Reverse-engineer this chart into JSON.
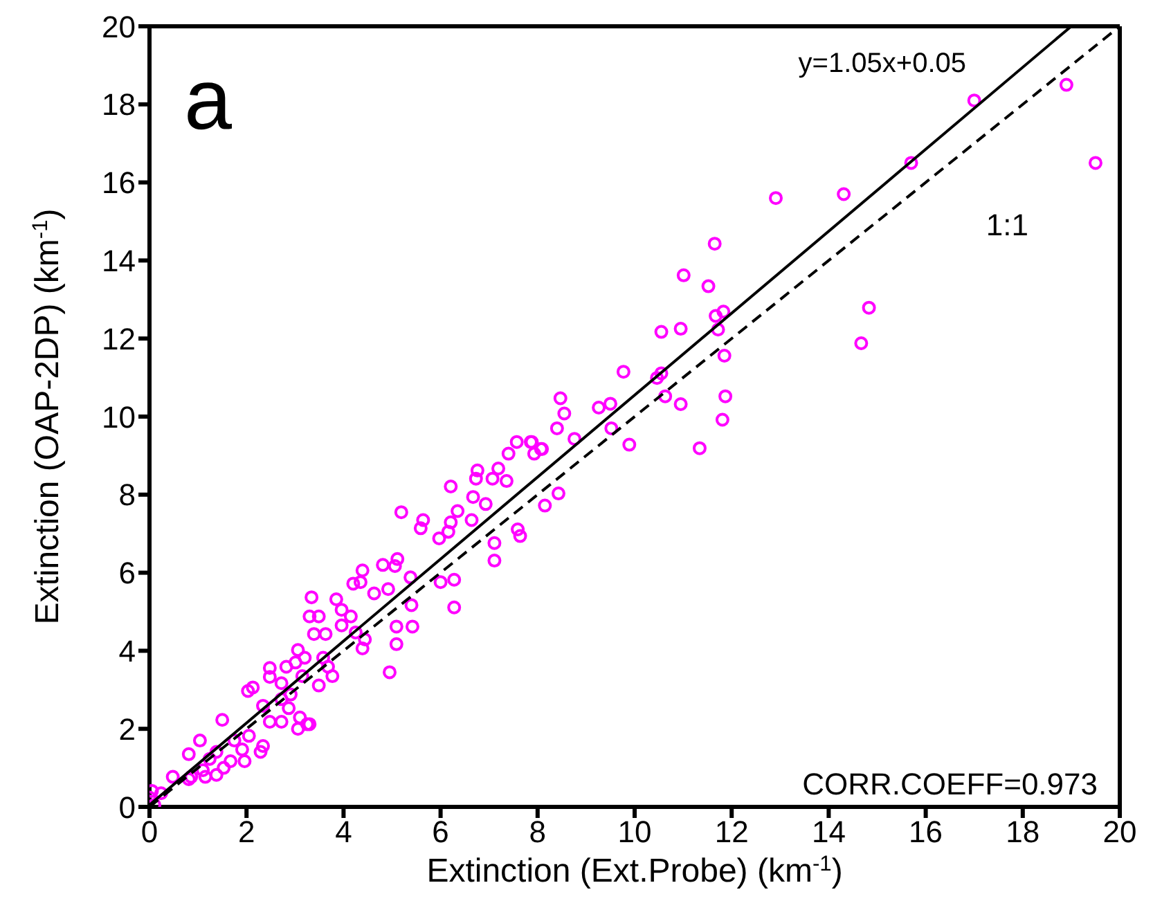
{
  "chart_data": {
    "type": "scatter",
    "xlabel": "Extinction (Ext.Probe) (km$^{-1}$)",
    "ylabel": "Extinction (OAP-2DP) (km$^{-1}$)",
    "xlim": [
      0,
      20
    ],
    "ylim": [
      0,
      20
    ],
    "xticks": [
      0,
      2,
      4,
      6,
      8,
      10,
      12,
      14,
      16,
      18,
      20
    ],
    "yticks": [
      0,
      2,
      4,
      6,
      8,
      10,
      12,
      14,
      16,
      18,
      20
    ],
    "legend": false,
    "annotations": [
      "a",
      "y=1.05x+0.05",
      "1:1",
      "CORR.COEFF=0.973"
    ],
    "series": [
      {
        "color": "#ff00ff",
        "marker": "circle",
        "x": [
          12.91,
          14.31,
          11.65,
          11.01,
          11.52,
          14.83,
          14.67,
          10.55,
          10.95,
          11.67,
          11.83,
          11.72,
          11.85,
          9.77,
          10.46,
          10.55,
          10.63,
          10.95,
          11.87,
          11.81,
          11.34,
          8.47,
          8.55,
          9.26,
          9.5,
          8.4,
          9.52,
          8.76,
          9.89,
          7.88,
          8.07,
          8.43,
          17.0,
          15.7,
          18.9,
          19.5,
          7.57,
          7.86,
          8.09,
          7.4,
          7.93,
          6.76,
          7.19,
          6.73,
          7.07,
          7.36,
          6.21,
          6.67,
          6.93,
          8.15,
          5.19,
          6.35,
          5.64,
          5.59,
          6.64,
          6.21,
          5.97,
          6.16,
          7.59,
          7.64,
          7.11,
          7.11,
          5.11,
          5.06,
          4.81,
          5.38,
          4.39,
          4.35,
          4.2,
          6.0,
          6.28,
          6.28,
          4.63,
          4.92,
          5.4,
          5.09,
          5.42,
          5.09,
          3.85,
          3.34,
          3.3,
          3.49,
          3.96,
          4.15,
          3.39,
          3.63,
          3.96,
          4.25,
          4.44,
          4.39,
          3.06,
          3.2,
          3.58,
          3.68,
          3.77,
          3.49,
          4.95,
          3.01,
          2.82,
          2.72,
          2.91,
          3.15,
          2.48,
          2.48,
          2.13,
          2.03,
          2.34,
          2.72,
          2.87,
          3.1,
          3.25,
          3.06,
          3.3,
          2.48,
          2.72,
          2.05,
          2.34,
          2.29,
          1.5,
          1.75,
          1.91,
          1.96,
          1.04,
          1.38,
          1.24,
          1.67,
          1.53,
          0.81,
          0.86,
          1.1,
          1.38,
          0.81,
          1.15,
          0.48,
          0.05,
          0.24,
          0.0,
          0.1
        ],
        "values": [
          15.6,
          15.7,
          14.43,
          13.62,
          13.34,
          12.79,
          11.88,
          12.17,
          12.25,
          12.58,
          12.69,
          12.23,
          11.56,
          11.15,
          10.99,
          11.11,
          10.52,
          10.32,
          10.52,
          9.92,
          9.19,
          10.47,
          10.08,
          10.23,
          10.33,
          9.7,
          9.7,
          9.43,
          9.28,
          9.35,
          9.17,
          8.03,
          18.1,
          16.5,
          18.5,
          16.5,
          9.35,
          9.35,
          9.17,
          9.05,
          9.05,
          8.62,
          8.67,
          8.41,
          8.41,
          8.35,
          8.21,
          7.94,
          7.76,
          7.72,
          7.55,
          7.58,
          7.35,
          7.14,
          7.35,
          7.29,
          6.88,
          7.05,
          7.11,
          6.94,
          6.76,
          6.31,
          6.35,
          6.17,
          6.2,
          5.88,
          6.06,
          5.76,
          5.72,
          5.76,
          5.82,
          5.11,
          5.47,
          5.58,
          5.17,
          4.62,
          4.62,
          4.17,
          5.32,
          5.37,
          4.88,
          4.88,
          5.05,
          4.88,
          4.43,
          4.43,
          4.65,
          4.47,
          4.29,
          4.06,
          4.02,
          3.82,
          3.82,
          3.59,
          3.35,
          3.11,
          3.45,
          3.7,
          3.59,
          3.17,
          2.88,
          3.35,
          3.56,
          3.33,
          3.06,
          2.97,
          2.59,
          2.76,
          2.53,
          2.29,
          2.12,
          2.0,
          2.12,
          2.18,
          2.18,
          1.82,
          1.56,
          1.41,
          2.23,
          1.7,
          1.47,
          1.17,
          1.7,
          1.41,
          1.23,
          1.17,
          1.0,
          1.35,
          0.77,
          0.94,
          0.82,
          0.71,
          0.77,
          0.77,
          0.41,
          0.35,
          0.24,
          0.05
        ]
      },
      {
        "type": "line",
        "color": "#000000",
        "line_style": "solid",
        "x": [
          0,
          19
        ],
        "values": [
          0.05,
          20
        ]
      },
      {
        "type": "line",
        "color": "#000000",
        "line_style": "dashed",
        "x": [
          0,
          20
        ],
        "values": [
          0,
          20
        ]
      }
    ]
  }
}
